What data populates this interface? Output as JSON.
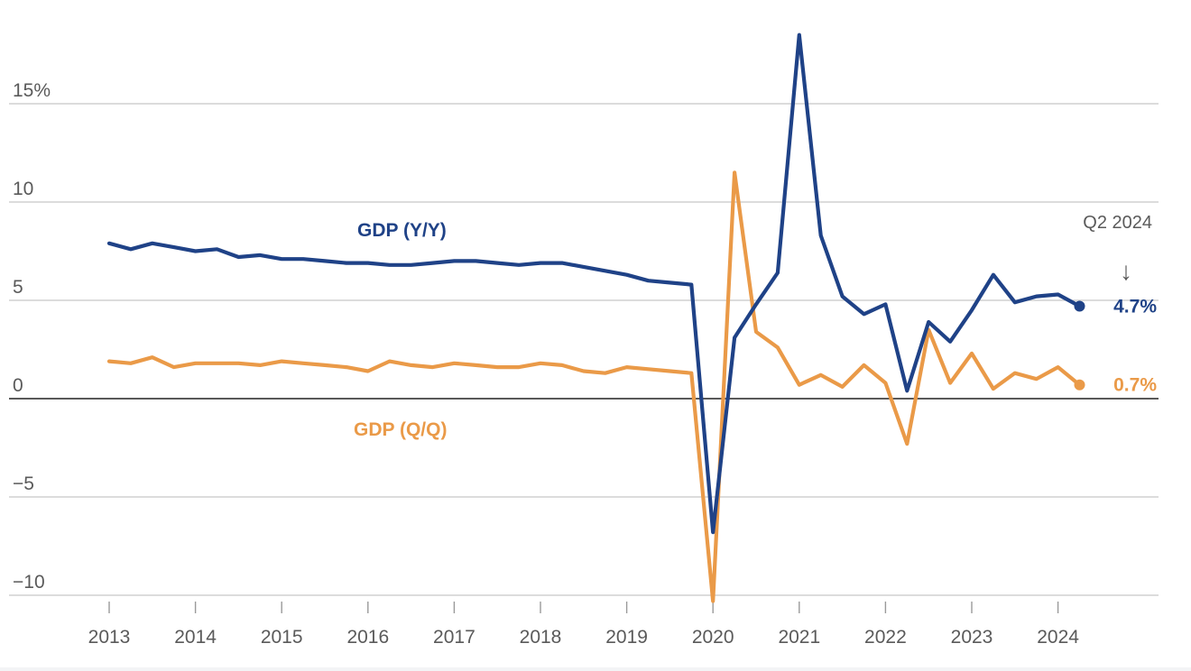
{
  "chart_data": {
    "type": "line",
    "title": "",
    "xlabel": "",
    "ylabel": "",
    "ylim": [
      -10,
      18
    ],
    "y_ticks": [
      {
        "value": 15,
        "label": "15%"
      },
      {
        "value": 10,
        "label": "10"
      },
      {
        "value": 5,
        "label": "5"
      },
      {
        "value": 0,
        "label": "0"
      },
      {
        "value": -5,
        "label": "−5"
      },
      {
        "value": -10,
        "label": "−10"
      }
    ],
    "x_ticks": [
      "2013",
      "2014",
      "2015",
      "2016",
      "2017",
      "2018",
      "2019",
      "2020",
      "2021",
      "2022",
      "2023",
      "2024"
    ],
    "x_start_year": 2013,
    "quarters": [
      "2013Q1",
      "2013Q2",
      "2013Q3",
      "2013Q4",
      "2014Q1",
      "2014Q2",
      "2014Q3",
      "2014Q4",
      "2015Q1",
      "2015Q2",
      "2015Q3",
      "2015Q4",
      "2016Q1",
      "2016Q2",
      "2016Q3",
      "2016Q4",
      "2017Q1",
      "2017Q2",
      "2017Q3",
      "2017Q4",
      "2018Q1",
      "2018Q2",
      "2018Q3",
      "2018Q4",
      "2019Q1",
      "2019Q2",
      "2019Q3",
      "2019Q4",
      "2020Q1",
      "2020Q2",
      "2020Q3",
      "2020Q4",
      "2021Q1",
      "2021Q2",
      "2021Q3",
      "2021Q4",
      "2022Q1",
      "2022Q2",
      "2022Q3",
      "2022Q4",
      "2023Q1",
      "2023Q2",
      "2023Q3",
      "2023Q4",
      "2024Q1",
      "2024Q2"
    ],
    "series": [
      {
        "name": "GDP (Y/Y)",
        "label": "GDP (Y/Y)",
        "color": "#1f4287",
        "values": [
          7.9,
          7.6,
          7.9,
          7.7,
          7.5,
          7.6,
          7.2,
          7.3,
          7.1,
          7.1,
          7.0,
          6.9,
          6.9,
          6.8,
          6.8,
          6.9,
          7.0,
          7.0,
          6.9,
          6.8,
          6.9,
          6.9,
          6.7,
          6.5,
          6.3,
          6.0,
          5.9,
          5.8,
          -6.8,
          3.1,
          4.8,
          6.4,
          18.5,
          8.3,
          5.2,
          4.3,
          4.8,
          0.4,
          3.9,
          2.9,
          4.5,
          6.3,
          4.9,
          5.2,
          5.3,
          4.7
        ],
        "end_label": "4.7%"
      },
      {
        "name": "GDP (Q/Q)",
        "label": "GDP (Q/Q)",
        "color": "#ea9a48",
        "values": [
          1.9,
          1.8,
          2.1,
          1.6,
          1.8,
          1.8,
          1.8,
          1.7,
          1.9,
          1.8,
          1.7,
          1.6,
          1.4,
          1.9,
          1.7,
          1.6,
          1.8,
          1.7,
          1.6,
          1.6,
          1.8,
          1.7,
          1.4,
          1.3,
          1.6,
          1.5,
          1.4,
          1.3,
          -10.3,
          11.5,
          3.4,
          2.6,
          0.7,
          1.2,
          0.6,
          1.7,
          0.8,
          -2.3,
          3.5,
          0.8,
          2.3,
          0.5,
          1.3,
          1.0,
          1.6,
          0.7
        ],
        "end_label": "0.7%"
      }
    ],
    "annotations": [
      {
        "text": "Q2 2024",
        "arrow": "↓"
      }
    ]
  }
}
